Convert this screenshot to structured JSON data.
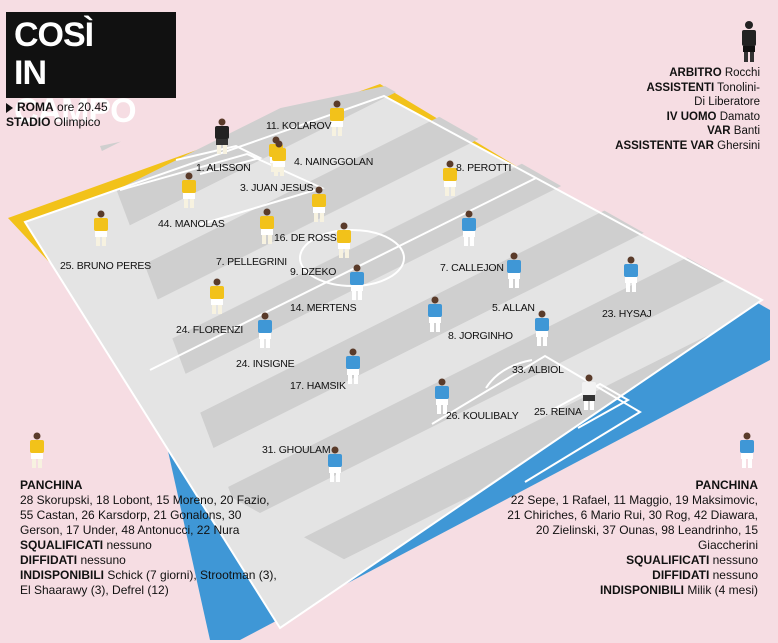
{
  "title": {
    "line1": "COSÌ",
    "line2": "IN CAMPO"
  },
  "match": {
    "teams": "ROMA",
    "time": "ore 20.45",
    "stadium_label": "STADIO",
    "stadium": "Olimpico"
  },
  "officials": [
    {
      "role": "ARBITRO",
      "name": "Rocchi"
    },
    {
      "role": "ASSISTENTI",
      "name": "Tonolini-"
    },
    {
      "role": "",
      "name": "Di Liberatore"
    },
    {
      "role": "IV UOMO",
      "name": "Damato"
    },
    {
      "role": "VAR",
      "name": "Banti"
    },
    {
      "role": "ASSISTENTE VAR",
      "name": "Ghersini"
    }
  ],
  "colors": {
    "roma_kit": "#f2c21a",
    "napoli_kit": "#3f97d6",
    "roma_band": "#f2c21a",
    "napoli_band": "#3f97d6",
    "pitch_light": "#e2e2e2",
    "pitch_dark": "#cdcdcd"
  },
  "roma_players": [
    {
      "label": "1. ALISSON",
      "keeper": true
    },
    {
      "label": "11. KOLAROV"
    },
    {
      "label": "4. NAINGGOLAN"
    },
    {
      "label": "3. JUAN JESUS"
    },
    {
      "label": "8. PEROTTI"
    },
    {
      "label": "44. MANOLAS"
    },
    {
      "label": "16. DE ROSSI"
    },
    {
      "label": "7. PELLEGRINI"
    },
    {
      "label": "9. DZEKO"
    },
    {
      "label": "25. BRUNO PERES"
    },
    {
      "label": "24. FLORENZI"
    }
  ],
  "napoli_players": [
    {
      "label": "7. CALLEJON"
    },
    {
      "label": "14. MERTENS"
    },
    {
      "label": "5. ALLAN"
    },
    {
      "label": "23. HYSAJ"
    },
    {
      "label": "8. JORGINHO"
    },
    {
      "label": "24. INSIGNE"
    },
    {
      "label": "33. ALBIOL"
    },
    {
      "label": "17. HAMSIK"
    },
    {
      "label": "26. KOULIBALY"
    },
    {
      "label": "25. REINA",
      "keeper": true
    },
    {
      "label": "31. GHOULAM"
    }
  ],
  "bench_left": {
    "title": "PANCHINA",
    "list": "28 Skorupski, 18 Lobont, 15 Moreno, 20 Fazio, 55 Castan, 26 Karsdorp, 21 Gonalons, 30 Gerson, 17 Under, 48 Antonucci, 22 Nura",
    "suspended_label": "SQUALIFICATI",
    "suspended": "nessuno",
    "warned_label": "DIFFIDATI",
    "warned": "nessuno",
    "unavailable_label": "INDISPONIBILI",
    "unavailable": "Schick (7 giorni), Strootman (3), El Shaarawy (3), Defrel (12)"
  },
  "bench_right": {
    "title": "PANCHINA",
    "list": "22 Sepe, 1 Rafael, 11 Maggio, 19 Maksimovic, 21 Chiriches, 6 Mario Rui, 30 Rog, 42 Diawara, 20 Zielinski, 37 Ounas, 98 Leandrinho, 15 Giaccherini",
    "suspended_label": "SQUALIFICATI",
    "suspended": "nessuno",
    "warned_label": "DIFFIDATI",
    "warned": "nessuno",
    "unavailable_label": "INDISPONIBILI",
    "unavailable": "Milik (4 mesi)"
  }
}
